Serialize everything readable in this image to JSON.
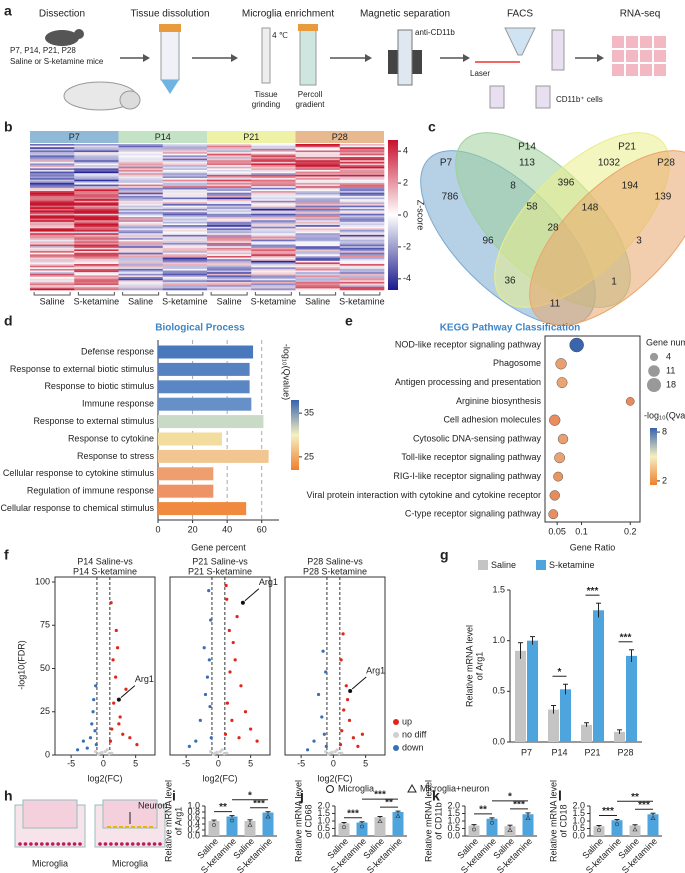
{
  "panel_labels": [
    "a",
    "b",
    "c",
    "d",
    "e",
    "f",
    "g",
    "h",
    "i",
    "j",
    "k",
    "l"
  ],
  "workflow": {
    "steps": [
      "Dissection",
      "Tissue dissolution",
      "Microglia enrichment",
      "Magnetic separation",
      "FACS",
      "RNA-seq"
    ],
    "mice_ages": "P7, P14, P21, P28",
    "mice_groups": "Saline or S-ketamine mice",
    "temperature": "4 ℃",
    "grinding": [
      "Tissue",
      "grinding"
    ],
    "percoll": [
      "Percoll",
      "gradient"
    ],
    "antibody": "anti-CD11b",
    "laser": "Laser",
    "cells": "CD11b⁺ cells"
  },
  "heatmap": {
    "groups": [
      {
        "name": "P7",
        "color": "#8fb9d6"
      },
      {
        "name": "P14",
        "color": "#c4e3c5"
      },
      {
        "name": "P21",
        "color": "#eef2a6"
      },
      {
        "name": "P28",
        "color": "#e8b98e"
      }
    ],
    "conditions": [
      "Saline",
      "S-ketamine",
      "Saline",
      "S-ketamine",
      "Saline",
      "S-ketamine",
      "Saline",
      "S-ketamine"
    ],
    "colorbar": {
      "label": "Z-score",
      "lim": [
        -4.7,
        4.7
      ],
      "ticks": [
        4,
        2,
        0,
        -2,
        -4
      ],
      "colors": [
        "#1a1a8c",
        "#ffffff",
        "#c8102e"
      ]
    }
  },
  "venn": {
    "sets": [
      {
        "name": "P7",
        "color": "#7aa9cf"
      },
      {
        "name": "P14",
        "color": "#9ecf9a"
      },
      {
        "name": "P21",
        "color": "#e9ee8a"
      },
      {
        "name": "P28",
        "color": "#e9a66b"
      }
    ],
    "counts": [
      786,
      113,
      1032,
      139,
      8,
      396,
      194,
      58,
      148,
      96,
      28,
      3,
      36,
      1,
      11
    ]
  },
  "h_diagram": {
    "neuron": "Neuron",
    "microglia": [
      "Microglia",
      "Microglia"
    ]
  },
  "chart_data": [
    {
      "type": "barh",
      "title": "Biological Process",
      "categories": [
        "Defense response",
        "Response to external biotic stimulus",
        "Response to biotic stimulus",
        "Immune response",
        "Response to external stimulus",
        "Response to cytokine",
        "Response to stress",
        "Cellular response to cytokine stimulus",
        "Regulation of immune response",
        "Cellular response to chemical stimulus"
      ],
      "values": [
        55,
        53,
        53,
        54,
        61,
        37,
        64,
        32,
        32,
        51
      ],
      "colors": [
        "#4a78bd",
        "#5682c2",
        "#5b86c4",
        "#6790c8",
        "#c9dbc6",
        "#f2dc9e",
        "#f1c691",
        "#ef9e6f",
        "#ee9366",
        "#ef8a3f"
      ],
      "xlim": [
        0,
        70
      ],
      "xticks": [
        0,
        20,
        40,
        60
      ],
      "xlabel": "Gene percent",
      "grid": "dashed",
      "colorbar": {
        "label": "-log₁₀(Qvalue)",
        "lim": [
          22,
          38
        ],
        "ticks": [
          35,
          25
        ],
        "colors": [
          "#ef7f2f",
          "#f6f0c0",
          "#3563ad"
        ]
      }
    },
    {
      "type": "dot",
      "title": "KEGG Pathway Classification",
      "categories": [
        "NOD-like receptor signaling pathway",
        "Phagosome",
        "Antigen processing and presentation",
        "Arginine biosynthesis",
        "Cell adhesion molecules",
        "Cytosolic DNA-sensing pathway",
        "Toll-like receptor signaling pathway",
        "RIG-I-like receptor signaling pathway",
        "Viral protein interaction with cytokine and cytokine receptor",
        "C-type receptor signaling pathway"
      ],
      "values": [
        0.09,
        0.058,
        0.06,
        0.2,
        0.045,
        0.062,
        0.055,
        0.052,
        0.045,
        0.042
      ],
      "sizes": [
        18,
        9,
        8,
        4,
        9,
        7,
        8,
        6,
        7,
        6
      ],
      "colors": [
        "#3a64ab",
        "#e9a070",
        "#eba574",
        "#e88a5c",
        "#e98d60",
        "#e9a070",
        "#eaa273",
        "#e8955f",
        "#e88b5a",
        "#e98e60"
      ],
      "xlim": [
        0.025,
        0.22
      ],
      "xticks": [
        0.05,
        0.1,
        0.2
      ],
      "xlabel": "Gene Ratio",
      "size_legend": {
        "title": "Gene number",
        "values": [
          4,
          11,
          18
        ]
      },
      "colorbar": {
        "label": "-log₁₀(Qvalue)",
        "lim": [
          1.5,
          8.5
        ],
        "ticks": [
          8,
          2
        ],
        "colors": [
          "#ef7f2f",
          "#f6f0c0",
          "#3563ad"
        ]
      }
    },
    {
      "type": "volcano",
      "panels": [
        {
          "title": [
            "P14 Saline-vs",
            "P14 S-ketamine"
          ],
          "annotation": {
            "text": "Arg1",
            "x": 2.4,
            "y": 32
          }
        },
        {
          "title": [
            "P21 Saline-vs",
            "P21 S-ketamine"
          ],
          "annotation": {
            "text": "Arg1",
            "x": 3.8,
            "y": 88
          }
        },
        {
          "title": [
            "P28 Saline-vs",
            "P28 S-ketamine"
          ],
          "annotation": {
            "text": "Arg1",
            "x": 2.6,
            "y": 37
          }
        }
      ],
      "series": [
        {
          "name": "up",
          "color": "#e0251b",
          "panels": [
            {
              "x": [
                1.1,
                1.3,
                1.6,
                1.9,
                2.2,
                2.6,
                3.0,
                3.5,
                4.1,
                1.2,
                1.5,
                2.0,
                2.4,
                5.2
              ],
              "values": [
                8,
                15,
                30,
                45,
                62,
                22,
                12,
                38,
                10,
                88,
                55,
                72,
                18,
                6
              ]
            },
            {
              "x": [
                1.1,
                1.4,
                1.8,
                2.3,
                2.9,
                3.5,
                4.2,
                5.0,
                1.3,
                1.7,
                2.1,
                2.6,
                3.2,
                6.0,
                1.2
              ],
              "values": [
                12,
                30,
                48,
                65,
                80,
                40,
                25,
                15,
                90,
                72,
                20,
                55,
                10,
                8,
                98
              ]
            },
            {
              "x": [
                1.1,
                1.3,
                1.6,
                2.0,
                2.5,
                3.1,
                3.8,
                1.2,
                1.5,
                2.2,
                4.5
              ],
              "values": [
                6,
                14,
                26,
                40,
                20,
                10,
                5,
                55,
                70,
                32,
                12
              ]
            }
          ]
        },
        {
          "name": "no diff",
          "color": "#cfcfcf",
          "panels": [
            {
              "x": [
                -0.5,
                0.3,
                -0.8,
                0.6,
                -0.2,
                0.9,
                -1.2,
                1.3
              ],
              "values": [
                1,
                2,
                0.5,
                3,
                1.5,
                0.8,
                2,
                1
              ]
            },
            {
              "x": [
                -0.5,
                0.3,
                -0.8,
                0.6,
                -0.2,
                0.9,
                -1.2,
                1.3
              ],
              "values": [
                1,
                2,
                0.5,
                3,
                1.5,
                0.8,
                2,
                1
              ]
            },
            {
              "x": [
                -0.5,
                0.3,
                -0.8,
                0.6,
                -0.2,
                0.9,
                -1.2,
                1.3
              ],
              "values": [
                1,
                2,
                0.5,
                3,
                1.5,
                0.8,
                2,
                1
              ]
            }
          ]
        },
        {
          "name": "down",
          "color": "#3a6fb5",
          "panels": [
            {
              "x": [
                -1.1,
                -1.3,
                -1.6,
                -2.0,
                -2.5,
                -3.1,
                -1.2,
                -1.5,
                -4.0,
                -1.8
              ],
              "values": [
                6,
                14,
                25,
                10,
                4,
                8,
                40,
                32,
                3,
                18
              ]
            },
            {
              "x": [
                -1.1,
                -1.3,
                -1.7,
                -2.2,
                -2.8,
                -3.5,
                -1.2,
                -1.5,
                -4.5,
                -2.0,
                -1.4
              ],
              "values": [
                10,
                28,
                45,
                62,
                20,
                8,
                78,
                95,
                5,
                35,
                55
              ]
            },
            {
              "x": [
                -1.1,
                -1.4,
                -1.8,
                -2.3,
                -3.0,
                -1.2,
                -1.6,
                -4.0
              ],
              "values": [
                5,
                12,
                22,
                35,
                8,
                48,
                60,
                3
              ]
            }
          ]
        }
      ],
      "xlim": [
        -7.5,
        8
      ],
      "xticks": [
        -5,
        0,
        5
      ],
      "ylim": [
        0,
        100
      ],
      "yticks": [
        0,
        25,
        50,
        75,
        100
      ],
      "xlabel": "log2(FC)",
      "ylabel": "-log10(FDR)",
      "thresholds": [
        -1,
        1
      ],
      "legend": "right"
    },
    {
      "type": "bar",
      "categories": [
        "P7",
        "P14",
        "P21",
        "P28"
      ],
      "series": [
        {
          "name": "Saline",
          "color": "#c4c4c4",
          "values": [
            0.9,
            0.32,
            0.17,
            0.1
          ],
          "errors": [
            0.08,
            0.04,
            0.02,
            0.02
          ]
        },
        {
          "name": "S-ketamine",
          "color": "#4ea4dc",
          "values": [
            1.0,
            0.52,
            1.3,
            0.85
          ],
          "errors": [
            0.04,
            0.05,
            0.07,
            0.06
          ]
        }
      ],
      "ylim": [
        0,
        1.5
      ],
      "yticks": [
        {
          "value": 0,
          "label": "0.0"
        },
        0.5,
        {
          "value": 1,
          "label": "1.0"
        },
        1.5
      ],
      "ylabel": [
        "Relative mRNA level",
        "of Arg1"
      ],
      "significance": [
        null,
        "*",
        "***",
        "***"
      ],
      "legend": "top"
    },
    {
      "type": "bar_panels",
      "categories": [
        "Saline",
        "S-ketamine",
        "Saline",
        "S-ketamine"
      ],
      "colors": [
        "#c4c4c4",
        "#4ea4dc",
        "#c4c4c4",
        "#4ea4dc"
      ],
      "legend": [
        {
          "name": "Microglia",
          "marker": "circle"
        },
        {
          "name": "Microglia+neuron",
          "marker": "triangle"
        }
      ],
      "panels": [
        {
          "ylabel": [
            "Relative mRNA level",
            "of Arg1"
          ],
          "values": [
            0.5,
            0.65,
            0.5,
            0.78
          ],
          "errors": [
            0.03,
            0.03,
            0.04,
            0.03
          ],
          "ylim": [
            0,
            1.0
          ],
          "yticks": [
            {
              "value": 0,
              "label": "0.0"
            },
            0.2,
            0.4,
            0.6,
            0.8,
            {
              "value": 1,
              "label": "1.0"
            }
          ],
          "significance": [
            "**",
            "***",
            "*"
          ]
        },
        {
          "ylabel": [
            "Relative mRNA level",
            "of CD68"
          ],
          "values": [
            0.85,
            0.9,
            1.25,
            1.6
          ],
          "errors": [
            0.05,
            0.05,
            0.05,
            0.06
          ],
          "ylim": [
            0,
            2.0
          ],
          "yticks": [
            {
              "value": 0,
              "label": "0.0"
            },
            0.5,
            {
              "value": 1,
              "label": "1.0"
            },
            1.5,
            {
              "value": 2,
              "label": "2.0"
            }
          ],
          "significance": [
            "***",
            "**",
            "***"
          ]
        },
        {
          "ylabel": [
            "Relative mRNA level",
            "of CD11b"
          ],
          "values": [
            0.7,
            1.15,
            0.65,
            1.45
          ],
          "errors": [
            0.06,
            0.06,
            0.07,
            0.09
          ],
          "ylim": [
            0,
            2.0
          ],
          "yticks": [
            {
              "value": 0,
              "label": "0.0"
            },
            0.5,
            {
              "value": 1,
              "label": "1.0"
            },
            1.5,
            {
              "value": 2,
              "label": "2.0"
            }
          ],
          "significance": [
            "**",
            "***",
            "*"
          ]
        },
        {
          "ylabel": [
            "Relative mRNA level",
            "of CD18"
          ],
          "values": [
            0.65,
            1.05,
            0.7,
            1.45
          ],
          "errors": [
            0.05,
            0.05,
            0.05,
            0.07
          ],
          "ylim": [
            0,
            2.0
          ],
          "yticks": [
            {
              "value": 0,
              "label": "0.0"
            },
            0.5,
            {
              "value": 1,
              "label": "1.0"
            },
            1.5,
            {
              "value": 2,
              "label": "2.0"
            }
          ],
          "significance": [
            "***",
            "***",
            "**"
          ]
        }
      ]
    }
  ]
}
